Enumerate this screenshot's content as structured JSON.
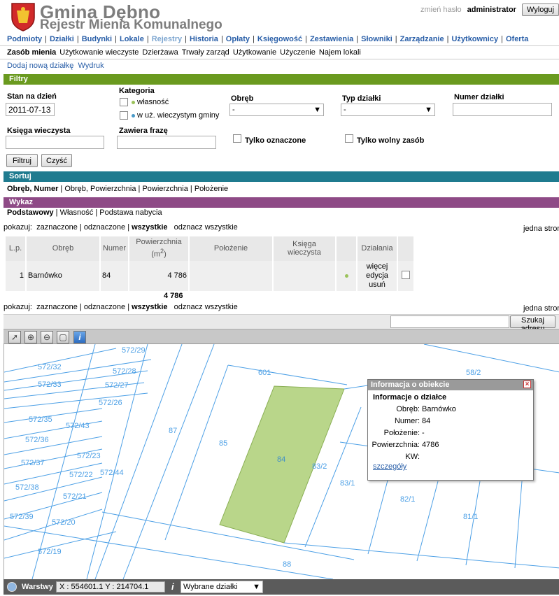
{
  "header": {
    "title": "Gmina Dębno",
    "subtitle": "Rejestr Mienia Komunalnego",
    "change_password": "zmień hasło",
    "user": "administrator",
    "logout": "Wyloguj"
  },
  "nav": {
    "items": [
      "Podmioty",
      "Działki",
      "Budynki",
      "Lokale",
      "Rejestry",
      "Historia",
      "Opłaty",
      "Księgowość",
      "Zestawienia",
      "Słowniki",
      "Zarządzanie",
      "Użytkownicy",
      "Oferta"
    ],
    "active_index": 4
  },
  "subnav": {
    "items": [
      "Zasób mienia",
      "Użytkowanie wieczyste",
      "Dzierżawa",
      "Trwały zarząd",
      "Użytkowanie",
      "Użyczenie",
      "Najem lokali"
    ]
  },
  "actions": {
    "add": "Dodaj nową działkę",
    "print": "Wydruk"
  },
  "filters": {
    "bar": "Filtry",
    "date_label": "Stan na dzień",
    "date_value": "2011-07-13",
    "category_label": "Kategoria",
    "cat_own": "własność",
    "cat_perp": "w uż. wieczystym gminy",
    "obreb_label": "Obręb",
    "obreb_value": "-",
    "type_label": "Typ działki",
    "type_value": "-",
    "number_label": "Numer działki",
    "kw_label": "Księga wieczysta",
    "phrase_label": "Zawiera frazę",
    "marked_only": "Tylko oznaczone",
    "free_only": "Tylko wolny zasób",
    "filter_btn": "Filtruj",
    "clear_btn": "Czyść"
  },
  "sort": {
    "bar": "Sortuj",
    "options": [
      "Obręb, Numer",
      "Obręb, Powierzchnia",
      "Powierzchnia",
      "Położenie"
    ]
  },
  "list": {
    "bar": "Wykaz",
    "views": [
      "Podstawowy",
      "Własność",
      "Podstawa nabycia"
    ],
    "show_label": "pokazuj:",
    "show_marked": "zaznaczone",
    "show_unmarked": "odznaczone",
    "show_all": "wszystkie",
    "unmark_all": "odznacz wszystkie",
    "one_page": "jedna stron",
    "columns": [
      "L.p.",
      "Obręb",
      "Numer",
      "Powierzchnia",
      "Położenie",
      "Księga wieczysta",
      "Działania"
    ],
    "area_unit": "(m",
    "area_sup": "2",
    "area_close": ")",
    "rows": [
      {
        "lp": "1",
        "obreb": "Barnówko",
        "numer": "84",
        "pow": "4 786",
        "polozenie": "",
        "kw": "",
        "actions": [
          "więcej",
          "edycja",
          "usuń"
        ]
      }
    ],
    "total": "4 786"
  },
  "map": {
    "search_btn": "Szukaj adresu",
    "parcels": [
      "572/29",
      "572/32",
      "572/28",
      "572/33",
      "572/27",
      "572/26",
      "572/35",
      "572/43",
      "572/36",
      "572/23",
      "572/37",
      "572/22",
      "572/44",
      "572/38",
      "572/21",
      "572/39",
      "572/20",
      "572/19",
      "601",
      "87",
      "85",
      "84",
      "83/2",
      "83/1",
      "58/2",
      "82/1",
      "81/1",
      "88"
    ],
    "popup": {
      "title": "Informacja o obiekcie",
      "heading": "Informacje o działce",
      "obreb_k": "Obręb:",
      "obreb_v": "Barnówko",
      "numer_k": "Numer:",
      "numer_v": "84",
      "pol_k": "Położenie:",
      "pol_v": "-",
      "pow_k": "Powierzchnia:",
      "pow_v": "4786",
      "kw_k": "KW:",
      "kw_v": "",
      "details": "szczegóły"
    },
    "status": {
      "layers": "Warstwy",
      "coords": "X : 554601.1  Y : 214704.1",
      "info_glyph": "i",
      "select_value": "Wybrane działki"
    }
  },
  "colors": {
    "filters_bar": "#6a9a1f",
    "sort_bar": "#1f7b8f",
    "list_bar": "#8e4a86",
    "parcel_fill": "#b9d68a",
    "parcel_line": "#4da0e6",
    "own_dot": "#9bc25b",
    "perp_dot": "#4a9ac8"
  }
}
